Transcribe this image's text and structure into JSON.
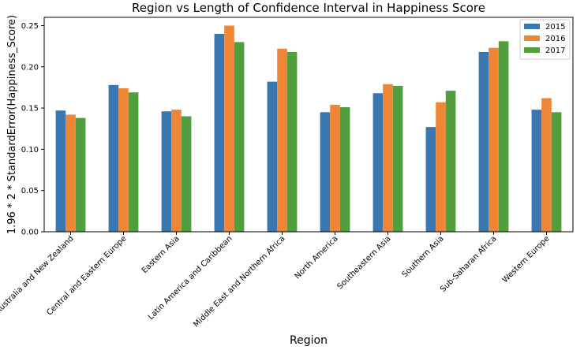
{
  "chart_data": {
    "type": "bar",
    "title": "Region vs Length of Confidence Interval in Happiness Score",
    "xlabel": "Region",
    "ylabel": "1.96 * 2 * StandardError(Happiness_Score)",
    "ylim": [
      0,
      0.26
    ],
    "yticks": [
      "0.00",
      "0.05",
      "0.10",
      "0.15",
      "0.20",
      "0.25"
    ],
    "grid": false,
    "legend_position": "top-right",
    "categories": [
      "Australia and New Zealand",
      "Central and Eastern Europe",
      "Eastern Asia",
      "Latin America and Caribbean",
      "Middle East and Northern Africa",
      "North America",
      "Southeastern Asia",
      "Southern Asia",
      "Sub-Saharan Africa",
      "Western Europe"
    ],
    "series": [
      {
        "name": "2015",
        "color": "#3a76af",
        "values": [
          0.147,
          0.178,
          0.146,
          0.24,
          0.182,
          0.145,
          0.168,
          0.127,
          0.218,
          0.148
        ]
      },
      {
        "name": "2016",
        "color": "#ef8636",
        "values": [
          0.142,
          0.174,
          0.148,
          0.25,
          0.222,
          0.154,
          0.179,
          0.157,
          0.223,
          0.162
        ]
      },
      {
        "name": "2017",
        "color": "#519e3e",
        "values": [
          0.138,
          0.169,
          0.14,
          0.23,
          0.218,
          0.151,
          0.177,
          0.171,
          0.231,
          0.145
        ]
      }
    ]
  }
}
